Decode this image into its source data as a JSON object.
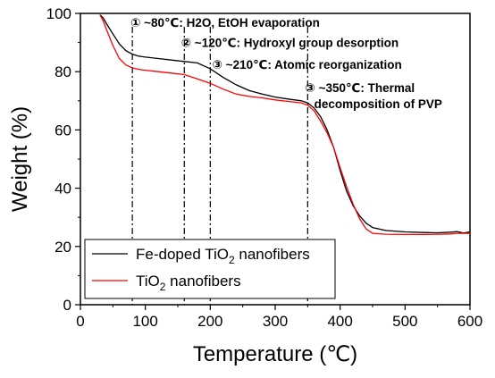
{
  "chart_data": {
    "type": "line",
    "xlabel": "Temperature (℃)",
    "ylabel": "Weight (%)",
    "xlim": [
      0,
      600
    ],
    "ylim": [
      0,
      100
    ],
    "xticks": [
      0,
      100,
      200,
      300,
      400,
      500,
      600
    ],
    "yticks": [
      0,
      20,
      40,
      60,
      80,
      100
    ],
    "grid": false,
    "legend_position": "bottom-left",
    "series": [
      {
        "name": "Fe-doped TiO₂ nanofibers",
        "color": "#000000",
        "x": [
          30,
          35,
          40,
          50,
          60,
          70,
          80,
          90,
          100,
          120,
          140,
          160,
          180,
          200,
          220,
          240,
          260,
          280,
          300,
          320,
          340,
          350,
          360,
          370,
          380,
          390,
          400,
          410,
          420,
          430,
          440,
          450,
          470,
          500,
          530,
          550,
          570,
          580,
          590,
          600
        ],
        "y": [
          99.5,
          98.5,
          96.5,
          93,
          89.5,
          87.2,
          86,
          85.3,
          85,
          84.5,
          84,
          83.5,
          83,
          81,
          78,
          75.5,
          73.5,
          72.3,
          71.3,
          70.6,
          70,
          69.3,
          67.5,
          64.5,
          60,
          54,
          46,
          39,
          34,
          30.5,
          28,
          26.5,
          25.5,
          25,
          24.8,
          24.7,
          24.9,
          25.1,
          24.6,
          25
        ]
      },
      {
        "name": "TiO₂ nanofibers",
        "color": "#ff0000",
        "x": [
          30,
          35,
          40,
          50,
          60,
          70,
          80,
          90,
          100,
          120,
          140,
          160,
          180,
          200,
          220,
          240,
          260,
          280,
          300,
          320,
          340,
          350,
          360,
          370,
          380,
          390,
          400,
          410,
          420,
          430,
          440,
          450,
          470,
          500,
          530,
          550,
          570,
          580,
          590,
          600
        ],
        "y": [
          99.5,
          97.5,
          94.5,
          89,
          84.5,
          82.3,
          81.3,
          80.8,
          80.5,
          80,
          79.5,
          79,
          77.5,
          76,
          74,
          72.3,
          71.5,
          71,
          70.3,
          69.8,
          69.3,
          68.5,
          66.5,
          63,
          59,
          54,
          47,
          40.5,
          34.5,
          29.5,
          26,
          24.5,
          24.2,
          24.1,
          24.1,
          24.2,
          24.3,
          24.5,
          24.5,
          24.5
        ]
      }
    ],
    "vlines": [
      80,
      160,
      200,
      350
    ],
    "annotations": [
      {
        "text": "① ~80℃: H2O, EtOH evaporation",
        "x": 77,
        "y": 97
      },
      {
        "text": "② ~120℃: Hydroxyl group desorption",
        "x": 155,
        "y": 90
      },
      {
        "text": "③ ~210℃: Atomic reorganization",
        "x": 203,
        "y": 82.5
      },
      {
        "text": "③ ~350℃: Thermal",
        "x": 346,
        "y": 74.5
      },
      {
        "text": "decomposition of PVP",
        "x": 360,
        "y": 69
      }
    ]
  }
}
